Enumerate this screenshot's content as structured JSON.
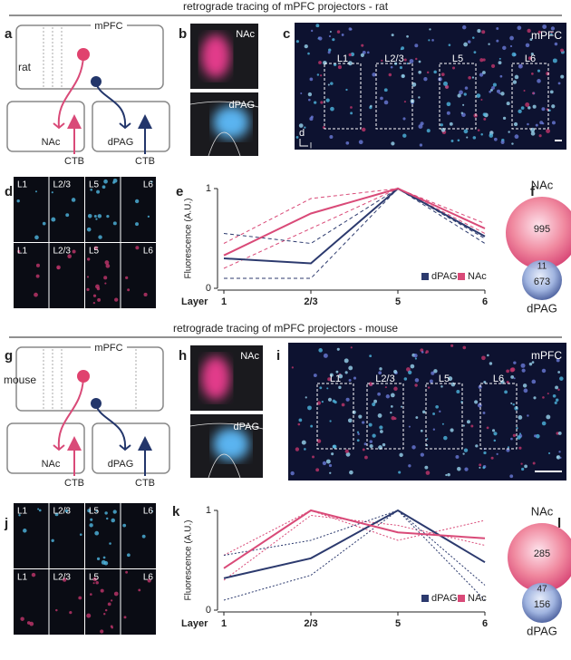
{
  "rat": {
    "title": "retrograde tracing of mPFC projectors - rat",
    "panel_labels": [
      "a",
      "b",
      "c",
      "d",
      "e",
      "f"
    ],
    "species": "rat",
    "region": "mPFC",
    "targets": [
      "NAc",
      "dPAG"
    ],
    "tracer": "CTB",
    "layers": [
      "L1",
      "L2/3",
      "L5",
      "L6"
    ],
    "axis_marker": [
      "d",
      "l"
    ],
    "venn": {
      "top": "NAc",
      "top_count": 995,
      "overlap": 11,
      "bottom_count": 673,
      "bottom": "dPAG"
    }
  },
  "mouse": {
    "title": "retrograde tracing of mPFC projectors - mouse",
    "panel_labels": [
      "g",
      "h",
      "i",
      "j",
      "k",
      "l"
    ],
    "species": "mouse",
    "region": "mPFC",
    "targets": [
      "NAc",
      "dPAG"
    ],
    "tracer": "CTB",
    "layers": [
      "L1",
      "L2/3",
      "L5",
      "L6"
    ],
    "venn": {
      "top": "NAc",
      "top_count": 285,
      "overlap": 47,
      "bottom_count": 156,
      "bottom": "dPAG"
    }
  },
  "chart_data": [
    {
      "type": "line",
      "ylabel": "Fluorescence (A.U.)",
      "xlabel": "Layer",
      "categories": [
        "1",
        "2/3",
        "5",
        "6"
      ],
      "ylim": [
        0,
        1
      ],
      "yticks": [
        0,
        1
      ],
      "legend": "bottom-right",
      "series": [
        {
          "color": "#d94a78",
          "style": "dashed",
          "values": [
            0.45,
            0.9,
            1.0,
            0.65
          ]
        },
        {
          "color": "#d94a78",
          "style": "dashed",
          "values": [
            0.2,
            0.6,
            1.0,
            0.55
          ]
        },
        {
          "color": "#2c3a6e",
          "style": "dashed",
          "values": [
            0.55,
            0.45,
            1.0,
            0.5
          ]
        },
        {
          "color": "#2c3a6e",
          "style": "dashed",
          "values": [
            0.1,
            0.1,
            1.0,
            0.45
          ]
        },
        {
          "name": "dPAG",
          "color": "#2c3a6e",
          "style": "solid",
          "values": [
            0.3,
            0.25,
            1.0,
            0.52
          ]
        },
        {
          "name": "NAc",
          "color": "#d94a78",
          "style": "solid",
          "values": [
            0.33,
            0.75,
            1.0,
            0.6
          ]
        }
      ]
    },
    {
      "type": "line",
      "ylabel": "Fluorescence (A.U.)",
      "xlabel": "Layer",
      "categories": [
        "1",
        "2/3",
        "5",
        "6"
      ],
      "ylim": [
        0,
        1
      ],
      "yticks": [
        0,
        1
      ],
      "legend": "bottom-right",
      "series": [
        {
          "color": "#d94a78",
          "style": "dotted",
          "values": [
            0.55,
            1.0,
            0.7,
            0.9
          ]
        },
        {
          "color": "#d94a78",
          "style": "dotted",
          "values": [
            0.3,
            0.95,
            0.85,
            0.65
          ]
        },
        {
          "color": "#2c3a6e",
          "style": "dotted",
          "values": [
            0.55,
            0.7,
            1.0,
            0.25
          ]
        },
        {
          "color": "#2c3a6e",
          "style": "dotted",
          "values": [
            0.1,
            0.35,
            1.0,
            0.1
          ]
        },
        {
          "name": "dPAG",
          "color": "#2c3a6e",
          "style": "solid",
          "values": [
            0.32,
            0.52,
            1.0,
            0.48
          ]
        },
        {
          "name": "NAc",
          "color": "#d94a78",
          "style": "solid",
          "values": [
            0.42,
            1.0,
            0.78,
            0.72
          ]
        }
      ]
    }
  ]
}
